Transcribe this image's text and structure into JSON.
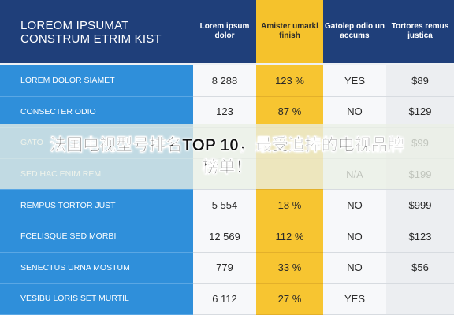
{
  "header": {
    "title": "LOREOM IPSUMAT CONSTRUM ETRIM KIST",
    "columns": [
      "Lorem ipsum dolor",
      "Amister umarkl finish",
      "Gatolep odio un accums",
      "Tortores remus justica"
    ]
  },
  "table": {
    "rows": [
      {
        "label": "LOREM DOLOR SIAMET",
        "number": "8 288",
        "percent": "123 %",
        "flag": "YES",
        "price": "$89"
      },
      {
        "label": "CONSECTER ODIO",
        "number": "123",
        "percent": "87 %",
        "flag": "NO",
        "price": "$129"
      },
      {
        "label": "GATO",
        "price": "$99"
      },
      {
        "label": "SED HAC ENIM REM",
        "flag": "N/A",
        "price": "$199"
      },
      {
        "label": "REMPUS TORTOR JUST",
        "number": "5 554",
        "percent": "18 %",
        "flag": "NO",
        "price": "$999"
      },
      {
        "label": "FCELISQUE SED MORBI",
        "number": "12 569",
        "percent": "112 %",
        "flag": "NO",
        "price": "$123"
      },
      {
        "label": "SENECTUS URNA MOSTUM",
        "number": "779",
        "percent": "33 %",
        "flag": "NO",
        "price": "$56"
      },
      {
        "label": "VESIBU LORIS SET MURTIL",
        "number": "6 112",
        "percent": "27 %",
        "flag": "YES"
      }
    ]
  },
  "banner": {
    "text": "法国电视型号排名TOP 10，最受追捧的电视品牌榜单！"
  }
}
